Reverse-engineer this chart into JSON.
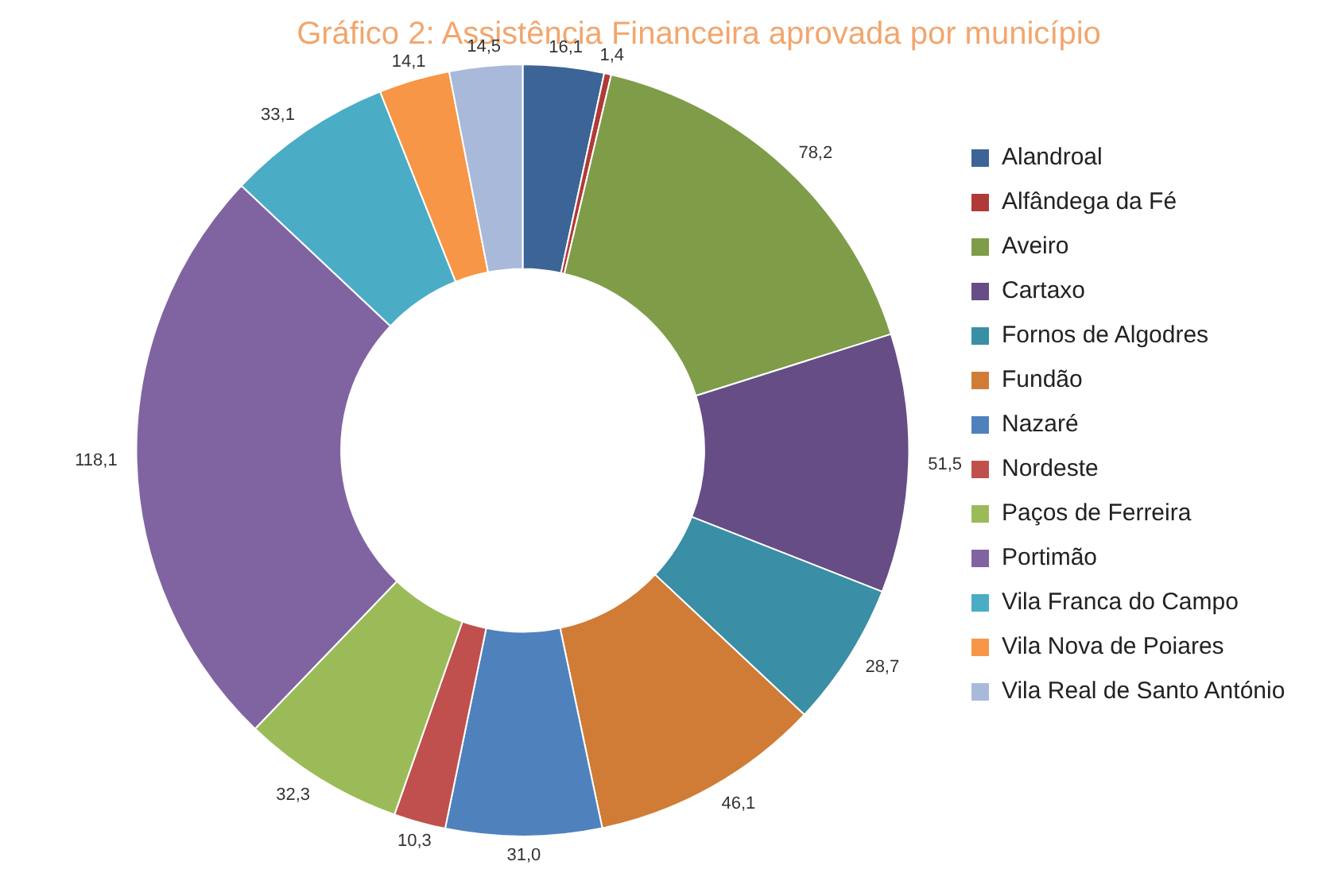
{
  "chart_data": {
    "type": "donut",
    "title": "Gráfico 2: Assistência Financeira aprovada por município",
    "categories": [
      "Alandroal",
      "Alfândega da Fé",
      "Aveiro",
      "Cartaxo",
      "Fornos de Algodres",
      "Fundão",
      "Nazaré",
      "Nordeste",
      "Paços de Ferreira",
      "Portimão",
      "Vila Franca do Campo",
      "Vila Nova de Poiares",
      "Vila Real de Santo António"
    ],
    "values": [
      16.1,
      1.4,
      78.2,
      51.5,
      28.7,
      46.1,
      31.0,
      10.3,
      32.3,
      118.1,
      33.1,
      14.1,
      14.5
    ],
    "value_labels": [
      "16,1",
      "1,4",
      "78,2",
      "51,5",
      "28,7",
      "46,1",
      "31,0",
      "10,3",
      "32,3",
      "118,1",
      "33,1",
      "14,1",
      "14,5"
    ],
    "colors": [
      "#3c6496",
      "#b03a37",
      "#7f9c48",
      "#664d85",
      "#3a8ea5",
      "#d07c36",
      "#4f81bd",
      "#c0504d",
      "#9bbb59",
      "#8064a2",
      "#4bacc6",
      "#f79646",
      "#a9b9d9"
    ],
    "legend": "right"
  }
}
